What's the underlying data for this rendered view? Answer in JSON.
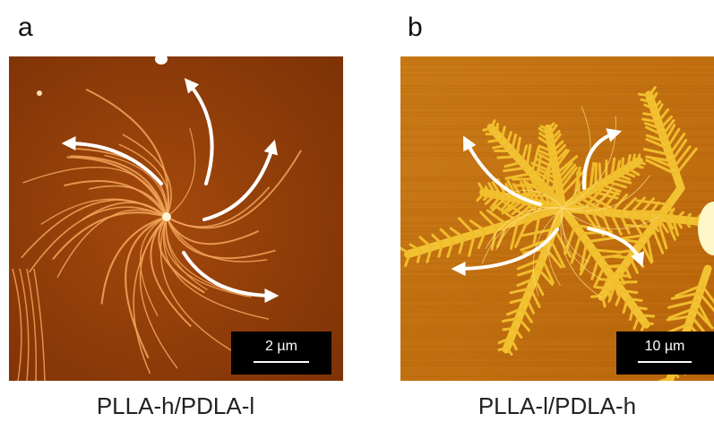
{
  "panels": [
    {
      "label": "a",
      "scale_bar": "2 µm",
      "caption": "PLLA-h/PDLA-l"
    },
    {
      "label": "b",
      "scale_bar": "10 µm",
      "caption": "PLLA-l/PDLA-h"
    }
  ]
}
